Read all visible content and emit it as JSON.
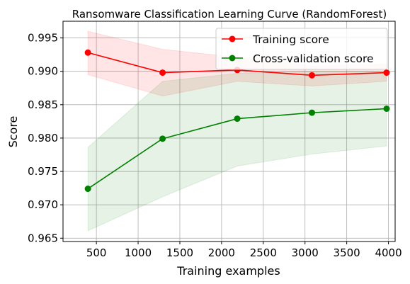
{
  "chart_data": {
    "type": "line",
    "title": "Ransomware Classification Learning Curve (RandomForest)",
    "xlabel": "Training examples",
    "ylabel": "Score",
    "xlim": [
      100,
      4080
    ],
    "ylim": [
      0.9645,
      0.9975
    ],
    "xticks": [
      500,
      1000,
      1500,
      2000,
      2500,
      3000,
      3500,
      4000
    ],
    "yticks": [
      0.965,
      0.97,
      0.975,
      0.98,
      0.985,
      0.99,
      0.995
    ],
    "grid": true,
    "legend_position": "top-right",
    "x": [
      398,
      1293,
      2188,
      3083,
      3978
    ],
    "series": [
      {
        "name": "Training score",
        "color": "#ff0000",
        "band_color": "#ff0000",
        "values": [
          0.9928,
          0.9898,
          0.9902,
          0.9894,
          0.9898
        ],
        "band_lower": [
          0.9895,
          0.9863,
          0.9885,
          0.9878,
          0.9885
        ],
        "band_upper": [
          0.996,
          0.9933,
          0.9921,
          0.9908,
          0.9911
        ]
      },
      {
        "name": "Cross-validation score",
        "color": "#008000",
        "band_color": "#008000",
        "values": [
          0.9724,
          0.9799,
          0.9829,
          0.9838,
          0.9844
        ],
        "band_lower": [
          0.9661,
          0.9712,
          0.9758,
          0.9776,
          0.9788
        ],
        "band_upper": [
          0.9786,
          0.9885,
          0.9897,
          0.99,
          0.99
        ]
      }
    ]
  }
}
